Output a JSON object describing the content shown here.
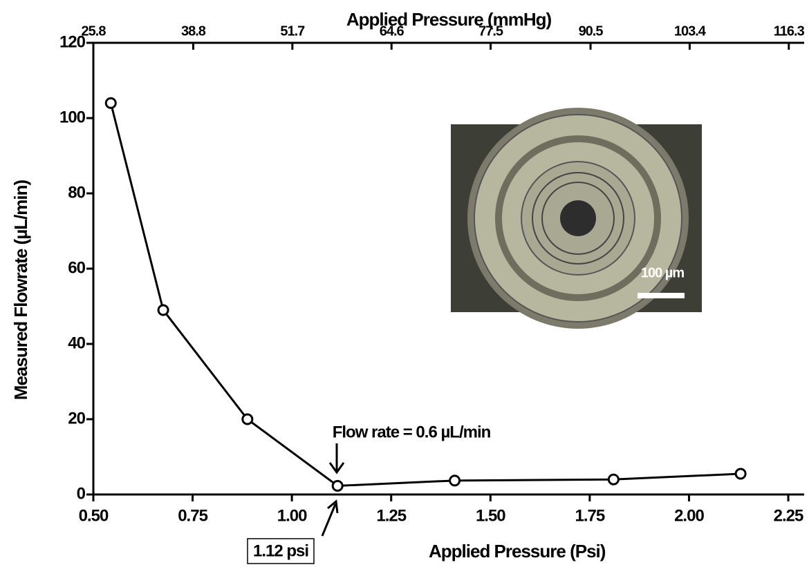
{
  "chart_data": {
    "type": "line",
    "title_x_top": "Applied Pressure (mmHg)",
    "x_label": "Applied Pressure (Psi)",
    "y_label": "Measured Flowrate (µL/min)",
    "x": [
      0.544,
      0.676,
      0.888,
      1.115,
      1.41,
      1.81,
      2.13
    ],
    "series": [
      {
        "color": "#000000",
        "values": [
          104,
          49,
          20,
          2.3,
          3.7,
          4.0,
          5.5
        ]
      }
    ],
    "xlim": [
      0.5,
      2.29
    ],
    "xticks": [
      {
        "value": 0.5,
        "label": "0.50"
      },
      0.75,
      {
        "value": 1.0,
        "label": "1.00"
      },
      1.25,
      {
        "value": 1.5,
        "label": "1.50"
      },
      1.75,
      {
        "value": 2.0,
        "label": "2.00"
      },
      2.25
    ],
    "x2lim": [
      25.8,
      118.3
    ],
    "x2ticks": [
      25.8,
      38.8,
      51.7,
      64.6,
      77.5,
      90.5,
      103.4,
      116.3
    ],
    "ylim": [
      0,
      120
    ],
    "yticks": [
      0,
      20,
      40,
      60,
      80,
      100,
      120
    ],
    "annotations": {
      "flow_rate": "Flow rate = 0.6 µL/min",
      "pressure_box": "1.12 psi",
      "scale_bar": "100 µm"
    }
  }
}
